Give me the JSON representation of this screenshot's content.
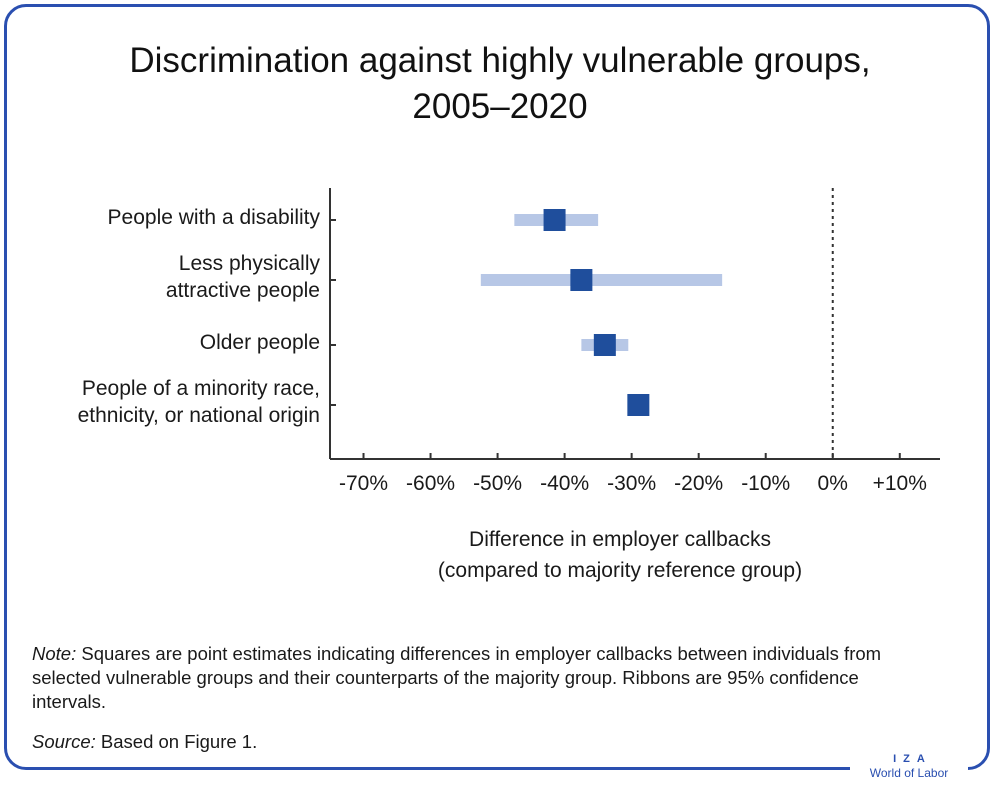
{
  "chart_data": {
    "type": "scatter",
    "title": "Discrimination against highly vulnerable groups,",
    "title_line2": "2005–2020",
    "categories": [
      {
        "lines": [
          "People with a disability"
        ],
        "estimate": -41.5,
        "ci": [
          -47.5,
          -35.0
        ]
      },
      {
        "lines": [
          "Less physically",
          "attractive people"
        ],
        "estimate": -37.5,
        "ci": [
          -52.5,
          -16.5
        ]
      },
      {
        "lines": [
          "Older people"
        ],
        "estimate": -34.0,
        "ci": [
          -37.5,
          -30.5
        ]
      },
      {
        "lines": [
          "People of a minority race,",
          "ethnicity, or national origin"
        ],
        "estimate": -29.0,
        "ci": [
          -30.5,
          -28.0
        ]
      }
    ],
    "xlim": [
      -75,
      16
    ],
    "x_ticks": [
      -70,
      -60,
      -50,
      -40,
      -30,
      -20,
      -10,
      0,
      10
    ],
    "x_tick_labels": [
      "-70%",
      "-60%",
      "-50%",
      "-40%",
      "-30%",
      "-20%",
      "-10%",
      "0%",
      "+10%"
    ],
    "xlabel": [
      "Difference in employer callbacks",
      "(compared to majority reference group)"
    ],
    "reference_line": 0,
    "colors": {
      "point": "#1f4e9c",
      "ribbon": "#b7c7e6",
      "frame": "#2a4fb0"
    }
  },
  "note": {
    "label": "Note:",
    "text": " Squares are point estimates indicating differences in employer callbacks between individuals from selected vulnerable groups and their counterparts of the majority group. Ribbons are 95% confidence intervals."
  },
  "source": {
    "label": "Source:",
    "text": " Based on Figure 1."
  },
  "logo": {
    "line1": "IZA",
    "line2": "World of Labor"
  }
}
